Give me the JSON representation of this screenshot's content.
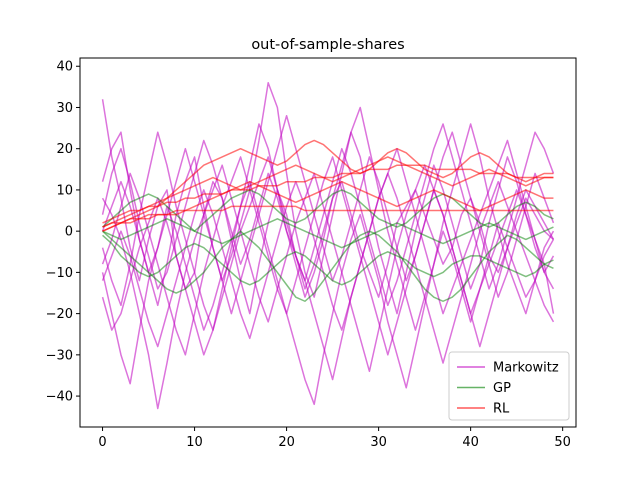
{
  "chart_data": {
    "type": "line",
    "title": "out-of-sample-shares",
    "xlabel": "",
    "ylabel": "",
    "xlim": [
      -2.45,
      51.45
    ],
    "ylim": [
      -47.5,
      42.0
    ],
    "xticks": [
      0,
      10,
      20,
      30,
      40,
      50
    ],
    "yticks": [
      -40,
      -30,
      -20,
      -10,
      0,
      10,
      20,
      30,
      40
    ],
    "grid": false,
    "legend": {
      "placement": "bottom-right",
      "entries": [
        "Markowitz",
        "GP",
        "RL"
      ]
    },
    "n_steps": 50,
    "series": [
      {
        "name": "Markowitz",
        "color": "#c000c0",
        "alpha": 0.55,
        "sample_paths": [
          [
            32,
            18,
            8,
            -4,
            -12,
            -2,
            6,
            10,
            -6,
            -14,
            -10,
            4,
            12,
            8,
            -2,
            -12,
            -20,
            -8,
            2,
            10,
            4,
            -6,
            -14,
            -8,
            0,
            8,
            12,
            4,
            -4,
            -10,
            -16,
            -8,
            2,
            6,
            10,
            4,
            -2,
            -8,
            -4,
            4,
            8,
            2,
            -6,
            -10,
            -4,
            2,
            8,
            4,
            0,
            -2
          ],
          [
            12,
            20,
            24,
            10,
            -2,
            -10,
            -18,
            -8,
            4,
            12,
            18,
            6,
            -4,
            -12,
            -6,
            2,
            10,
            22,
            36,
            30,
            14,
            0,
            -10,
            -16,
            -6,
            4,
            14,
            24,
            18,
            6,
            -4,
            -12,
            -20,
            -10,
            0,
            8,
            16,
            10,
            2,
            -6,
            -14,
            -8,
            2,
            10,
            18,
            12,
            4,
            -4,
            -10,
            -6
          ],
          [
            -10,
            -20,
            -30,
            -37,
            -24,
            -12,
            -4,
            6,
            0,
            -8,
            -16,
            -24,
            -18,
            -10,
            -2,
            6,
            12,
            4,
            -4,
            -12,
            -20,
            -28,
            -36,
            -42,
            -30,
            -20,
            -10,
            -2,
            4,
            -4,
            -12,
            -22,
            -30,
            -38,
            -28,
            -18,
            -8,
            0,
            -6,
            -14,
            -22,
            -14,
            -6,
            2,
            -4,
            -10,
            -16,
            -12,
            -6,
            -2
          ],
          [
            -4,
            -12,
            -18,
            -8,
            4,
            14,
            24,
            16,
            6,
            -2,
            -10,
            -18,
            -24,
            -14,
            -4,
            6,
            16,
            26,
            20,
            10,
            0,
            -8,
            -16,
            -10,
            -2,
            8,
            16,
            24,
            30,
            20,
            10,
            0,
            -8,
            -16,
            -24,
            -16,
            -8,
            2,
            10,
            18,
            26,
            18,
            8,
            0,
            -8,
            -14,
            -20,
            -12,
            -4,
            0
          ],
          [
            8,
            4,
            -2,
            -10,
            -20,
            -30,
            -43,
            -32,
            -20,
            -10,
            -2,
            4,
            10,
            16,
            8,
            0,
            -8,
            -16,
            -22,
            -14,
            -6,
            2,
            8,
            14,
            6,
            -2,
            -10,
            -18,
            -26,
            -34,
            -24,
            -14,
            -4,
            4,
            10,
            16,
            10,
            4,
            -4,
            -12,
            -20,
            -28,
            -20,
            -12,
            -4,
            4,
            10,
            6,
            2,
            -2
          ],
          [
            -16,
            -24,
            -20,
            -12,
            -4,
            2,
            8,
            2,
            -6,
            -14,
            -22,
            -30,
            -24,
            -16,
            -8,
            0,
            6,
            12,
            18,
            10,
            2,
            -6,
            -12,
            -20,
            -28,
            -36,
            -26,
            -16,
            -8,
            0,
            8,
            14,
            20,
            12,
            4,
            -4,
            -12,
            -20,
            -14,
            -8,
            -2,
            4,
            10,
            16,
            22,
            14,
            6,
            -2,
            -10,
            -14
          ],
          [
            4,
            14,
            20,
            12,
            2,
            -6,
            -14,
            -10,
            -2,
            6,
            14,
            22,
            16,
            8,
            0,
            -8,
            -2,
            6,
            14,
            8,
            0,
            -6,
            -12,
            -4,
            4,
            12,
            20,
            14,
            6,
            -2,
            -10,
            -18,
            -12,
            -4,
            4,
            12,
            20,
            26,
            18,
            10,
            2,
            -6,
            -14,
            -8,
            0,
            8,
            16,
            24,
            20,
            14
          ],
          [
            -8,
            -2,
            6,
            14,
            8,
            0,
            -8,
            -16,
            -24,
            -30,
            -20,
            -10,
            -2,
            6,
            12,
            18,
            10,
            2,
            -6,
            -14,
            -20,
            -12,
            -4,
            4,
            12,
            18,
            10,
            2,
            -6,
            -14,
            -22,
            -30,
            -22,
            -14,
            -6,
            2,
            10,
            4,
            -4,
            -12,
            -20,
            -14,
            -8,
            -2,
            4,
            10,
            4,
            -2,
            -8,
            -20
          ],
          [
            0,
            6,
            12,
            6,
            -2,
            -10,
            -4,
            4,
            12,
            20,
            12,
            4,
            -4,
            -12,
            -20,
            -12,
            -4,
            4,
            12,
            20,
            28,
            20,
            12,
            4,
            -4,
            -12,
            -6,
            2,
            10,
            18,
            12,
            4,
            -4,
            -12,
            -6,
            2,
            10,
            18,
            24,
            16,
            8,
            0,
            -8,
            -16,
            -10,
            -2,
            6,
            14,
            8,
            2
          ],
          [
            -12,
            -6,
            0,
            -6,
            -14,
            -22,
            -28,
            -20,
            -12,
            -4,
            4,
            10,
            4,
            -4,
            -12,
            -20,
            -26,
            -18,
            -10,
            -2,
            6,
            12,
            6,
            -2,
            -10,
            -18,
            -24,
            -16,
            -8,
            0,
            8,
            14,
            8,
            0,
            -8,
            -16,
            -24,
            -32,
            -24,
            -16,
            -8,
            0,
            6,
            12,
            6,
            0,
            -6,
            -12,
            -18,
            -22
          ]
        ]
      },
      {
        "name": "GP",
        "color": "#008000",
        "alpha": 0.5,
        "sample_paths": [
          [
            0,
            -2,
            -4,
            -6,
            -8,
            -10,
            -12,
            -14,
            -15,
            -14,
            -12,
            -10,
            -7,
            -4,
            -2,
            0,
            -2,
            -4,
            -7,
            -10,
            -13,
            -16,
            -17,
            -15,
            -12,
            -9,
            -6,
            -3,
            -1,
            0,
            -1,
            -3,
            -5,
            -8,
            -11,
            -14,
            -16,
            -17,
            -16,
            -14,
            -11,
            -8,
            -5,
            -3,
            -1,
            -2,
            -4,
            -6,
            -8,
            -9
          ],
          [
            -1,
            -3,
            -6,
            -8,
            -10,
            -11,
            -10,
            -8,
            -6,
            -4,
            -3,
            -4,
            -6,
            -8,
            -10,
            -12,
            -13,
            -12,
            -10,
            -8,
            -6,
            -5,
            -6,
            -8,
            -10,
            -12,
            -13,
            -12,
            -10,
            -8,
            -6,
            -5,
            -6,
            -7,
            -9,
            -10,
            -11,
            -10,
            -8,
            -7,
            -6,
            -6,
            -7,
            -8,
            -9,
            -10,
            -11,
            -10,
            -8,
            -7
          ],
          [
            1,
            3,
            5,
            7,
            8,
            9,
            8,
            6,
            4,
            2,
            0,
            2,
            4,
            6,
            8,
            9,
            10,
            9,
            7,
            5,
            3,
            2,
            3,
            5,
            7,
            9,
            10,
            9,
            7,
            5,
            3,
            2,
            1,
            2,
            4,
            6,
            8,
            9,
            8,
            6,
            4,
            2,
            1,
            2,
            4,
            6,
            7,
            6,
            4,
            3
          ],
          [
            0,
            -1,
            -2,
            -1,
            0,
            1,
            2,
            3,
            2,
            1,
            0,
            -1,
            -2,
            -3,
            -2,
            -1,
            0,
            1,
            2,
            3,
            2,
            1,
            0,
            -1,
            -2,
            -3,
            -4,
            -3,
            -2,
            -1,
            0,
            1,
            2,
            1,
            0,
            -1,
            -2,
            -3,
            -2,
            -1,
            0,
            1,
            2,
            1,
            0,
            -1,
            -2,
            -1,
            0,
            1
          ]
        ]
      },
      {
        "name": "RL",
        "color": "#ff0000",
        "alpha": 0.55,
        "sample_paths": [
          [
            0,
            1,
            2,
            3,
            4,
            5,
            6,
            8,
            10,
            12,
            14,
            16,
            17,
            18,
            19,
            20,
            19,
            18,
            17,
            16,
            17,
            19,
            21,
            22,
            21,
            19,
            17,
            15,
            14,
            15,
            17,
            19,
            20,
            19,
            17,
            15,
            14,
            13,
            14,
            16,
            18,
            19,
            18,
            16,
            14,
            13,
            12,
            13,
            14,
            14
          ],
          [
            1,
            2,
            3,
            4,
            5,
            6,
            7,
            8,
            9,
            10,
            11,
            12,
            13,
            12,
            11,
            10,
            11,
            12,
            13,
            14,
            15,
            16,
            15,
            14,
            13,
            12,
            13,
            14,
            15,
            16,
            17,
            18,
            17,
            16,
            15,
            14,
            13,
            12,
            11,
            12,
            13,
            14,
            15,
            14,
            13,
            12,
            11,
            12,
            13,
            13
          ],
          [
            2,
            3,
            4,
            5,
            5,
            6,
            6,
            7,
            7,
            8,
            8,
            9,
            9,
            9,
            10,
            10,
            10,
            11,
            11,
            11,
            12,
            12,
            12,
            13,
            13,
            13,
            14,
            14,
            14,
            15,
            15,
            15,
            16,
            16,
            16,
            16,
            15,
            15,
            15,
            15,
            15,
            14,
            14,
            14,
            14,
            13,
            13,
            13,
            13,
            13
          ],
          [
            0,
            1,
            2,
            2,
            3,
            3,
            4,
            4,
            4,
            5,
            5,
            5,
            5,
            5,
            6,
            6,
            6,
            6,
            6,
            6,
            6,
            6,
            5,
            5,
            5,
            5,
            5,
            5,
            5,
            5,
            5,
            5,
            5,
            5,
            5,
            5,
            5,
            5,
            5,
            5,
            5,
            5,
            5,
            5,
            5,
            5,
            5,
            5,
            5,
            5
          ],
          [
            1,
            2,
            2,
            3,
            3,
            4,
            4,
            4,
            5,
            5,
            6,
            7,
            8,
            9,
            10,
            11,
            12,
            11,
            10,
            9,
            8,
            7,
            8,
            9,
            10,
            11,
            12,
            11,
            10,
            9,
            8,
            7,
            6,
            7,
            8,
            9,
            10,
            9,
            8,
            7,
            6,
            5,
            6,
            7,
            8,
            9,
            10,
            9,
            8,
            8
          ]
        ]
      }
    ]
  }
}
